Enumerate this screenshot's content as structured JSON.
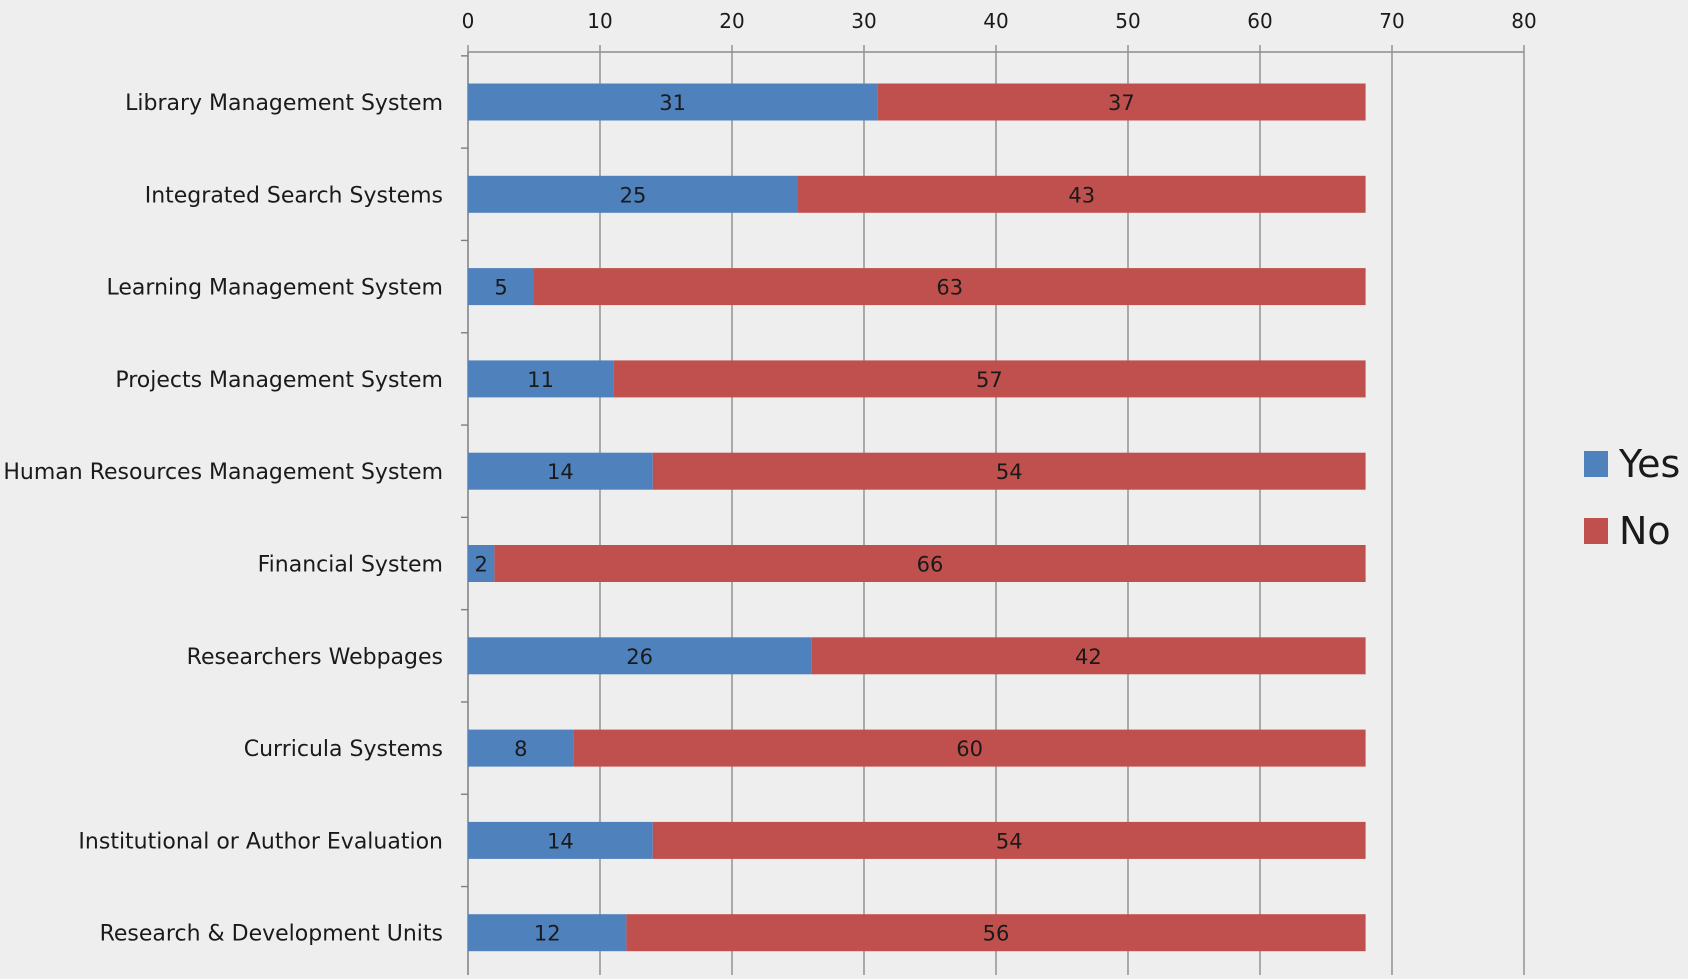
{
  "chart_data": {
    "type": "bar",
    "orientation": "horizontal",
    "stacked": true,
    "categories": [
      "Library Management System",
      "Integrated Search Systems",
      "Learning Management System",
      "Projects Management System",
      "Human Resources Management System",
      "Financial System",
      "Researchers Webpages",
      "Curricula Systems",
      "Institutional or Author Evaluation",
      "Research & Development Units"
    ],
    "series": [
      {
        "name": "Yes",
        "color": "#4f81bd",
        "values": [
          31,
          25,
          5,
          11,
          14,
          2,
          26,
          8,
          14,
          12
        ]
      },
      {
        "name": "No",
        "color": "#c0504d",
        "values": [
          37,
          43,
          63,
          57,
          54,
          66,
          42,
          60,
          54,
          56
        ]
      }
    ],
    "xlim": [
      0,
      80
    ],
    "xticks": [
      "0",
      "10",
      "20",
      "30",
      "40",
      "50",
      "60",
      "70",
      "80"
    ],
    "x_axis_position": "top",
    "grid": true,
    "data_labels": true,
    "legend_position": "right",
    "title": "",
    "xlabel": "",
    "ylabel": ""
  }
}
